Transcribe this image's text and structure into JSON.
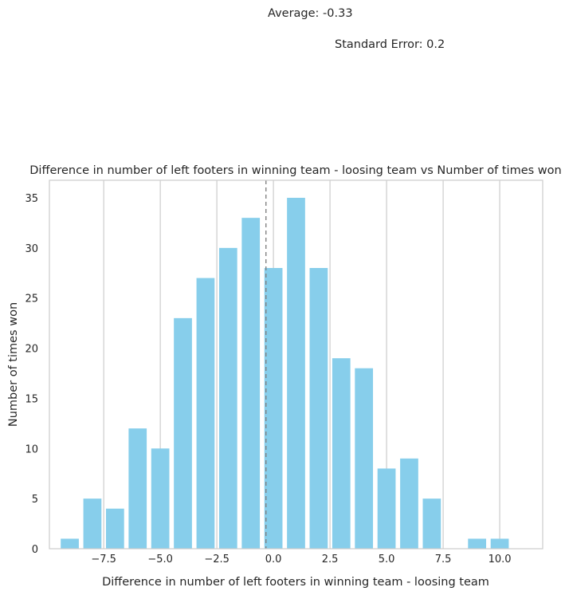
{
  "chart_data": {
    "type": "bar",
    "title": "Difference in number of left footers in winning team - loosing team vs Number of times won",
    "xlabel": "Difference in number of left footers in winning team - loosing team",
    "ylabel": "Number of times won",
    "annotations": {
      "average": "Average: -0.33",
      "standard_error": "Standard Error: 0.2"
    },
    "mean_line_x": -0.33,
    "x": [
      -9,
      -8,
      -7,
      -6,
      -5,
      -4,
      -3,
      -2,
      -1,
      0,
      1,
      2,
      3,
      4,
      5,
      6,
      7,
      8,
      9,
      10
    ],
    "values": [
      1,
      5,
      4,
      12,
      10,
      23,
      27,
      30,
      33,
      28,
      35,
      28,
      19,
      18,
      8,
      9,
      5,
      0,
      1,
      1
    ],
    "xlim": [
      -9.9,
      11.9
    ],
    "ylim": [
      0,
      36.75
    ],
    "xticks": [
      -7.5,
      -5.0,
      -2.5,
      0.0,
      2.5,
      5.0,
      7.5,
      10.0
    ],
    "xtick_labels": [
      "−7.5",
      "−5.0",
      "−2.5",
      "0.0",
      "2.5",
      "5.0",
      "7.5",
      "10.0"
    ],
    "yticks": [
      0,
      5,
      10,
      15,
      20,
      25,
      30,
      35
    ],
    "ytick_labels": [
      "0",
      "5",
      "10",
      "15",
      "20",
      "25",
      "30",
      "35"
    ],
    "grid": "vertical",
    "bar_color": "#87ceeb",
    "mean_line_color": "#808080",
    "grid_color": "#cccccc"
  }
}
